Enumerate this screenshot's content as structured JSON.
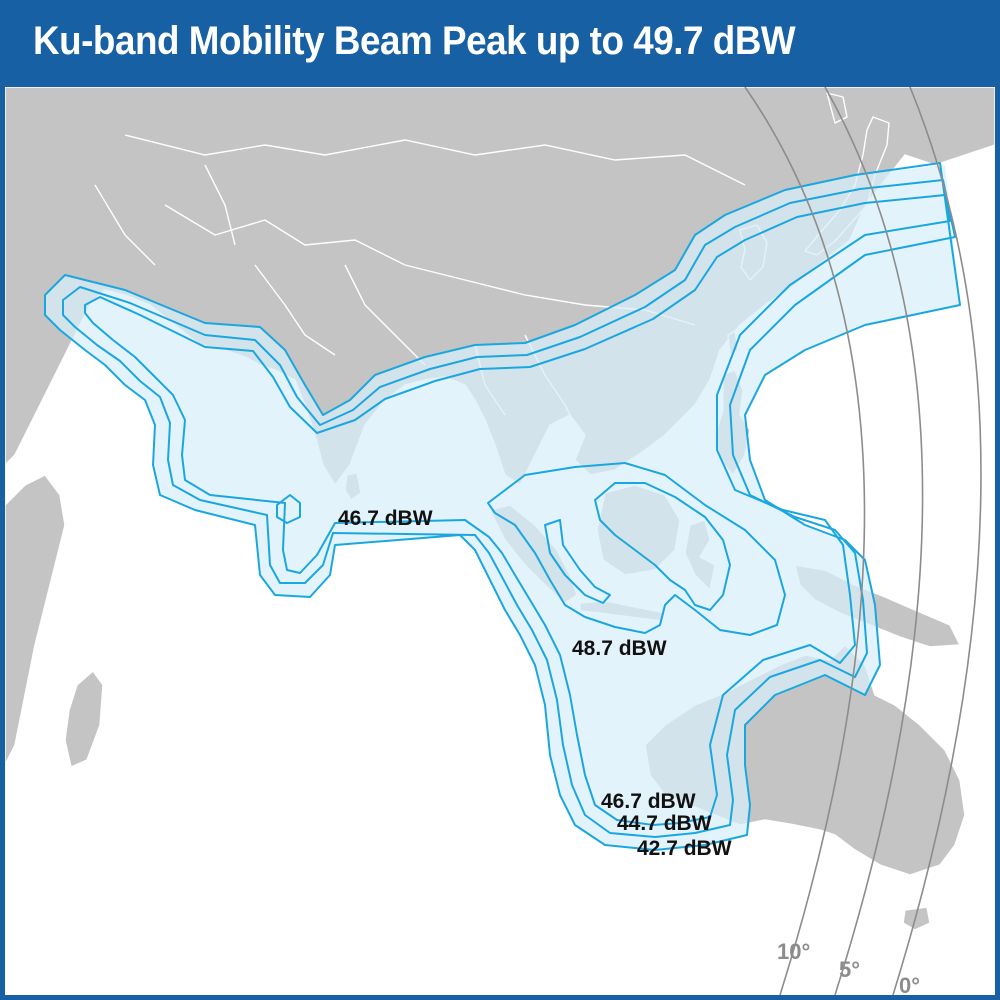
{
  "title": "Ku-band Mobility Beam Peak up to 49.7 dBW",
  "colors": {
    "title_bar": "#1760a3",
    "land": "#c4c4c4",
    "ocean": "#ffffff",
    "beam_fill": "#d8effa",
    "contour_line": "#1aa7e0",
    "elevation_line": "#8c8c8c"
  },
  "beam_labels": {
    "inner_india": "46.7 dBW",
    "peak": "48.7 dBW",
    "contour_1": "46.7 dBW",
    "contour_2": "44.7 dBW",
    "contour_3": "42.7 dBW"
  },
  "elevation_labels": {
    "ten": "10°",
    "five": "5°",
    "zero": "0°"
  }
}
